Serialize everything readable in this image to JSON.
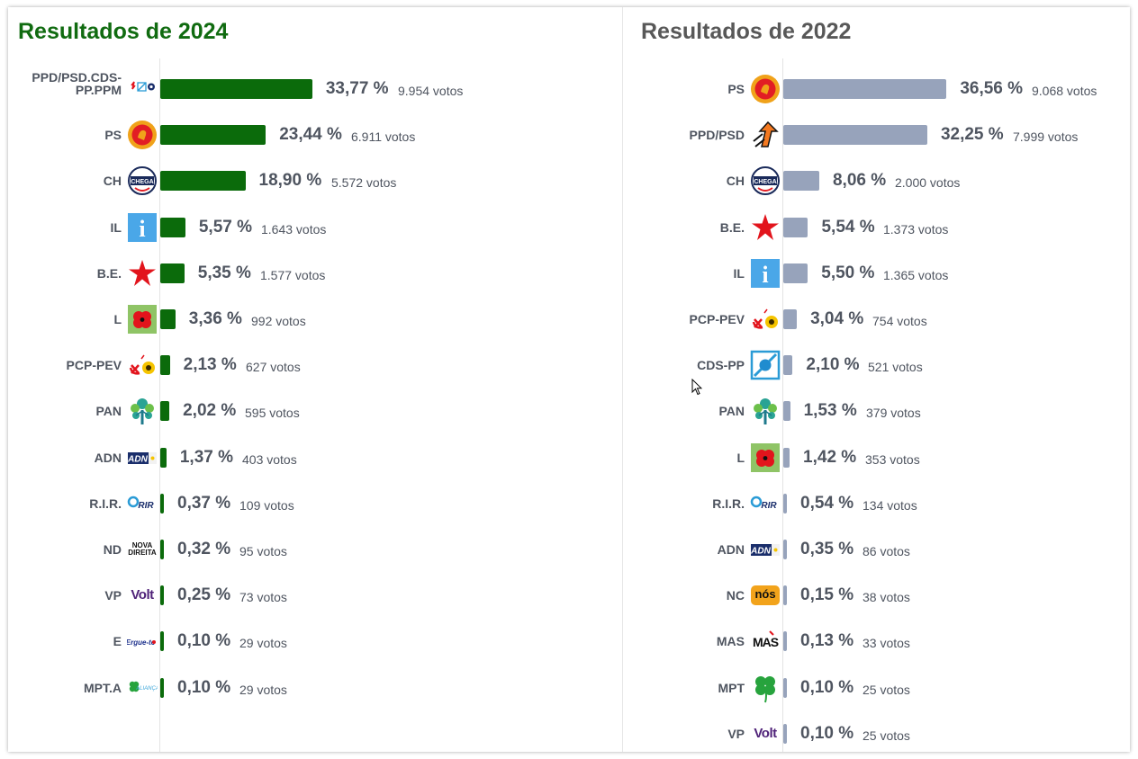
{
  "colors": {
    "bar_2024": "#0b6b0b",
    "bar_2022": "#97a3bb",
    "title_2024": "#106b10",
    "title_2022": "#585858"
  },
  "chart_data": [
    {
      "type": "bar",
      "orientation": "horizontal",
      "title": "Resultados de 2024",
      "categories": [
        "PPD/PSD.CDS-PP.PPM",
        "PS",
        "CH",
        "IL",
        "B.E.",
        "L",
        "PCP-PEV",
        "PAN",
        "ADN",
        "R.I.R.",
        "ND",
        "VP",
        "E",
        "MPT.A"
      ],
      "values": [
        33.77,
        23.44,
        18.9,
        5.57,
        5.35,
        3.36,
        2.13,
        2.02,
        1.37,
        0.37,
        0.32,
        0.25,
        0.1,
        0.1
      ],
      "percent_labels": [
        "33,77 %",
        "23,44 %",
        "18,90 %",
        "5,57 %",
        "5,35 %",
        "3,36 %",
        "2,13 %",
        "2,02 %",
        "1,37 %",
        "0,37 %",
        "0,32 %",
        "0,25 %",
        "0,10 %",
        "0,10 %"
      ],
      "votes": [
        "9.954 votos",
        "6.911 votos",
        "5.572 votos",
        "1.643 votos",
        "1.577 votos",
        "992 votos",
        "627 votos",
        "595 votos",
        "403 votos",
        "109 votos",
        "95 votos",
        "73 votos",
        "29 votos",
        "29 votos"
      ],
      "logos": [
        "ad-logo",
        "ps-logo",
        "chega-logo",
        "il-logo",
        "be-logo",
        "livre-logo",
        "cdu-logo",
        "pan-logo",
        "adn-logo",
        "rir-logo",
        "nova-direita-logo",
        "volt-logo",
        "ergue-te-logo",
        "mpt-alianca-logo"
      ],
      "logo_texts": [
        "",
        "",
        "CHEGA",
        "i",
        "",
        "",
        "",
        "",
        "ADN",
        "RIR",
        "NOVA DIREITA",
        "Volt",
        "Ergue-te",
        "ALIANÇA"
      ]
    },
    {
      "type": "bar",
      "orientation": "horizontal",
      "title": "Resultados de 2022",
      "categories": [
        "PS",
        "PPD/PSD",
        "CH",
        "B.E.",
        "IL",
        "PCP-PEV",
        "CDS-PP",
        "PAN",
        "L",
        "R.I.R.",
        "ADN",
        "NC",
        "MAS",
        "MPT",
        "VP"
      ],
      "values": [
        36.56,
        32.25,
        8.06,
        5.54,
        5.5,
        3.04,
        2.1,
        1.53,
        1.42,
        0.54,
        0.35,
        0.15,
        0.13,
        0.1,
        0.1
      ],
      "percent_labels": [
        "36,56 %",
        "32,25 %",
        "8,06 %",
        "5,54 %",
        "5,50 %",
        "3,04 %",
        "2,10 %",
        "1,53 %",
        "1,42 %",
        "0,54 %",
        "0,35 %",
        "0,15 %",
        "0,13 %",
        "0,10 %",
        "0,10 %"
      ],
      "votes": [
        "9.068 votos",
        "7.999 votos",
        "2.000 votos",
        "1.373 votos",
        "1.365 votos",
        "754 votos",
        "521 votos",
        "379 votos",
        "353 votos",
        "134 votos",
        "86 votos",
        "38 votos",
        "33 votos",
        "25 votos",
        "25 votos"
      ],
      "logos": [
        "ps-logo",
        "psd-logo",
        "chega-logo",
        "be-logo",
        "il-logo",
        "cdu-logo",
        "cds-logo",
        "pan-logo",
        "livre-logo",
        "rir-logo",
        "adn-logo",
        "nos-cidadaos-logo",
        "mas-logo",
        "mpt-logo",
        "volt-logo"
      ],
      "logo_texts": [
        "",
        "",
        "CHEGA",
        "",
        "i",
        "",
        "",
        "",
        "",
        "RIR",
        "ADN",
        "nós",
        "MAS",
        "",
        "Volt"
      ]
    }
  ]
}
